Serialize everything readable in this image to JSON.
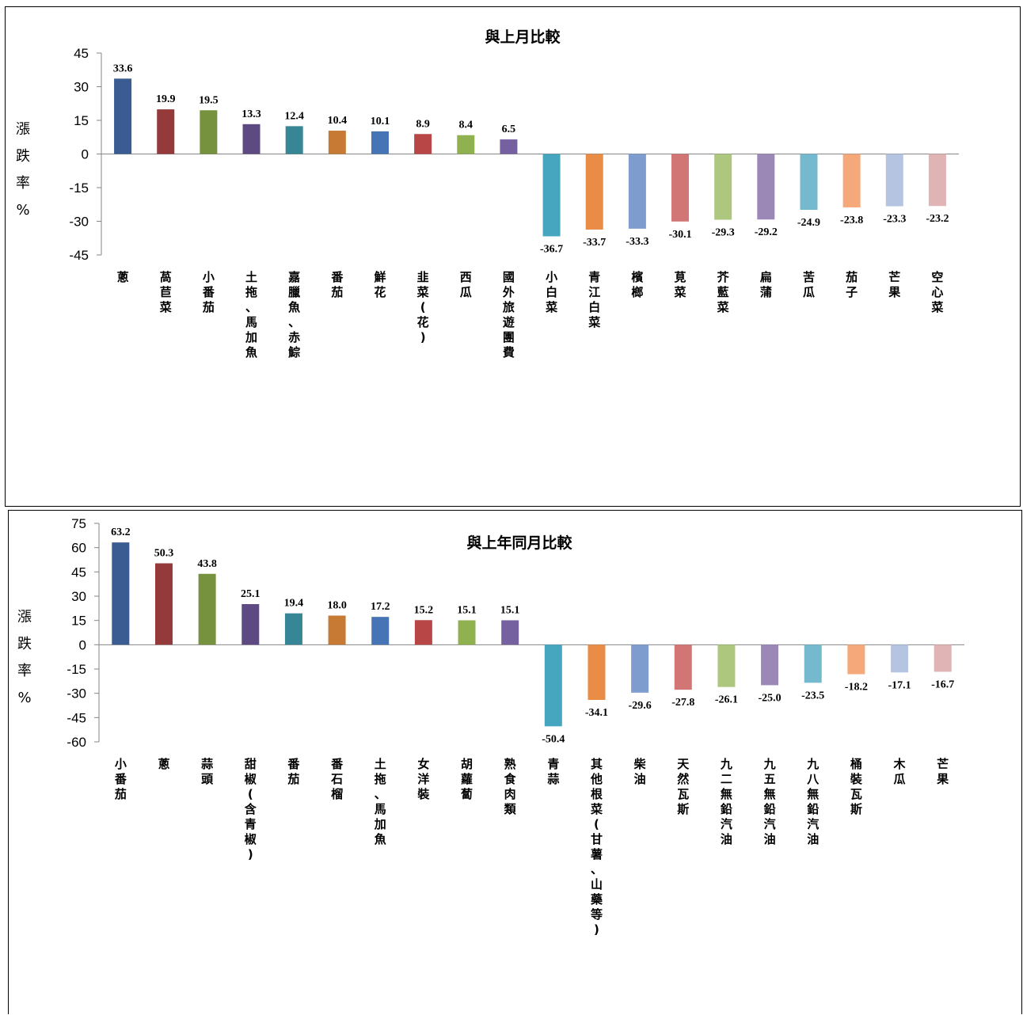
{
  "chart_data": [
    {
      "type": "bar",
      "title": "與上月比較",
      "ylabel": "漲跌率%",
      "ylim": [
        -45,
        45
      ],
      "yticks": [
        45,
        30,
        15,
        0,
        -15,
        -30,
        -45
      ],
      "categories": [
        "蔥",
        "萵苣菜",
        "小番茄",
        "土拖、馬加魚",
        "嘉臘魚、赤鯮",
        "番茄",
        "鮮花",
        "韭菜(花)",
        "西瓜",
        "國外旅遊團費",
        "小白菜",
        "青江白菜",
        "檳榔",
        "莧菜",
        "芥藍菜",
        "扁蒲",
        "苦瓜",
        "茄子",
        "芒果",
        "空心菜"
      ],
      "values": [
        33.6,
        19.9,
        19.5,
        13.3,
        12.4,
        10.4,
        10.1,
        8.9,
        8.4,
        6.5,
        -36.7,
        -33.7,
        -33.3,
        -30.1,
        -29.3,
        -29.2,
        -24.9,
        -23.8,
        -23.3,
        -23.2
      ],
      "data_labels": [
        "33.6",
        "19.9",
        "19.5",
        "13.3",
        "12.4",
        "10.4",
        "10.1",
        "8.9",
        "8.4",
        "6.5",
        "-36.7",
        "-33.7",
        "-33.3",
        "-30.1",
        "-29.3",
        "-29.2",
        "-24.9",
        "-23.8",
        "-23.3",
        "-23.2"
      ],
      "colors": [
        "#3a5c92",
        "#953a3a",
        "#77923f",
        "#5d4a82",
        "#378696",
        "#c67a34",
        "#4674b4",
        "#b94646",
        "#8fb150",
        "#7560a0",
        "#46a6bf",
        "#e98c45",
        "#7e9ccd",
        "#d17575",
        "#aec77e",
        "#9b88b7",
        "#74b9ce",
        "#f5a97a",
        "#b5c5e1",
        "#e0b3b4"
      ],
      "grid": false,
      "legend": "none"
    },
    {
      "type": "bar",
      "title": "與上年同月比較",
      "ylabel": "漲跌率%",
      "ylim": [
        -60,
        75
      ],
      "yticks": [
        75,
        60,
        45,
        30,
        15,
        0,
        -15,
        -30,
        -45,
        -60
      ],
      "categories": [
        "小番茄",
        "蔥",
        "蒜頭",
        "甜椒(含青椒)",
        "番茄",
        "番石榴",
        "土拖、馬加魚",
        "女洋裝",
        "胡蘿蔔",
        "熟食肉類",
        "青蒜",
        "其他根菜(甘薯、山藥等)",
        "柴油",
        "天然瓦斯",
        "九二無鉛汽油",
        "九五無鉛汽油",
        "九八無鉛汽油",
        "桶裝瓦斯",
        "木瓜",
        "芒果"
      ],
      "values": [
        63.2,
        50.3,
        43.8,
        25.1,
        19.4,
        18.0,
        17.2,
        15.2,
        15.1,
        15.1,
        -50.4,
        -34.1,
        -29.6,
        -27.8,
        -26.1,
        -25.0,
        -23.5,
        -18.2,
        -17.1,
        -16.7
      ],
      "data_labels": [
        "63.2",
        "50.3",
        "43.8",
        "25.1",
        "19.4",
        "18.0",
        "17.2",
        "15.2",
        "15.1",
        "15.1",
        "-50.4",
        "-34.1",
        "-29.6",
        "-27.8",
        "-26.1",
        "-25.0",
        "-23.5",
        "-18.2",
        "-17.1",
        "-16.7"
      ],
      "colors": [
        "#3a5c92",
        "#953a3a",
        "#77923f",
        "#5d4a82",
        "#378696",
        "#c67a34",
        "#4674b4",
        "#b94646",
        "#8fb150",
        "#7560a0",
        "#46a6bf",
        "#e98c45",
        "#7e9ccd",
        "#d17575",
        "#aec77e",
        "#9b88b7",
        "#74b9ce",
        "#f5a97a",
        "#b5c5e1",
        "#e0b3b4"
      ],
      "grid": false,
      "legend": "none"
    }
  ]
}
